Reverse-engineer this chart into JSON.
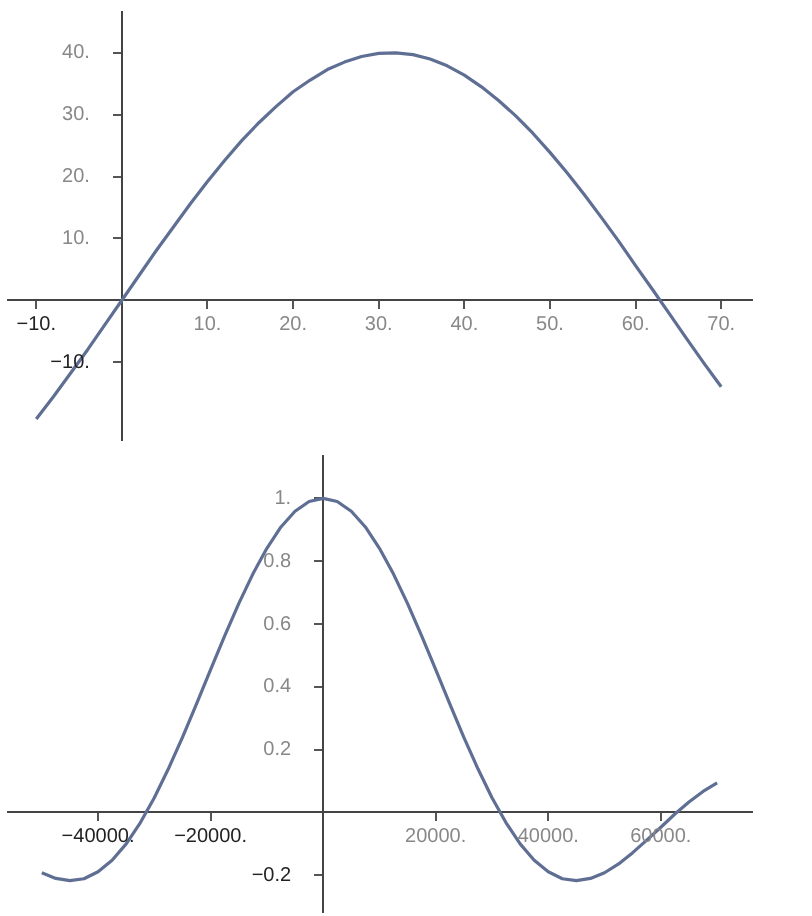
{
  "chart_data": [
    {
      "type": "line",
      "x": [
        -10,
        -8,
        -6,
        -4,
        -2,
        0,
        2,
        4,
        6,
        8,
        10,
        12,
        14,
        16,
        18,
        20,
        22,
        24,
        26,
        28,
        30,
        32,
        34,
        36,
        38,
        40,
        42,
        44,
        46,
        48,
        50,
        52,
        54,
        56,
        58,
        60,
        62,
        64,
        66,
        68,
        70
      ],
      "series": [
        {
          "color": "#5f6e93",
          "values": [
            -19.2,
            -15.6,
            -11.8,
            -8.0,
            -4.0,
            0,
            4.0,
            8.0,
            11.8,
            15.6,
            19.2,
            22.6,
            25.8,
            28.7,
            31.3,
            33.7,
            35.6,
            37.3,
            38.5,
            39.4,
            39.9,
            40.0,
            39.7,
            39.0,
            37.9,
            36.4,
            34.5,
            32.3,
            29.8,
            27.0,
            23.9,
            20.6,
            17.1,
            13.4,
            9.6,
            5.6,
            1.7,
            -2.3,
            -6.3,
            -10.2,
            -14.0
          ]
        }
      ],
      "xlim": [
        -13.3,
        73.6
      ],
      "ylim": [
        -22.6,
        46.6
      ],
      "xticks": [
        {
          "value": -10,
          "label": "−10."
        },
        {
          "value": 10,
          "label": "10."
        },
        {
          "value": 20,
          "label": "20."
        },
        {
          "value": 30,
          "label": "30."
        },
        {
          "value": 40,
          "label": "40."
        },
        {
          "value": 50,
          "label": "50."
        },
        {
          "value": 60,
          "label": "60."
        },
        {
          "value": 70,
          "label": "70."
        }
      ],
      "yticks": [
        {
          "value": -10,
          "label": "−10."
        },
        {
          "value": 10,
          "label": "10."
        },
        {
          "value": 20,
          "label": "20."
        },
        {
          "value": 30,
          "label": "30."
        },
        {
          "value": 40,
          "label": "40."
        }
      ],
      "grid": false,
      "marker": "none",
      "line_style": "solid"
    },
    {
      "type": "line",
      "x": [
        -50000,
        -47500,
        -45000,
        -42500,
        -40000,
        -37500,
        -35000,
        -32500,
        -30000,
        -27500,
        -25000,
        -22500,
        -20000,
        -17500,
        -15000,
        -12500,
        -10000,
        -7500,
        -5000,
        -2500,
        0,
        2500,
        5000,
        7500,
        10000,
        12500,
        15000,
        17500,
        20000,
        22500,
        25000,
        27500,
        30000,
        32500,
        35000,
        37500,
        40000,
        42500,
        45000,
        47500,
        50000,
        52500,
        55000,
        57500,
        60000,
        62500,
        65000,
        67500,
        70000
      ],
      "series": [
        {
          "color": "#5f6e93",
          "values": [
            -0.192,
            -0.21,
            -0.217,
            -0.211,
            -0.189,
            -0.152,
            -0.1,
            -0.033,
            0.047,
            0.139,
            0.239,
            0.346,
            0.455,
            0.562,
            0.665,
            0.759,
            0.841,
            0.909,
            0.959,
            0.99,
            1,
            0.99,
            0.959,
            0.909,
            0.841,
            0.759,
            0.665,
            0.562,
            0.455,
            0.346,
            0.239,
            0.139,
            0.047,
            -0.033,
            -0.1,
            -0.152,
            -0.189,
            -0.211,
            -0.217,
            -0.21,
            -0.192,
            -0.164,
            -0.128,
            -0.088,
            -0.047,
            -0.005,
            0.033,
            0.067,
            0.094
          ]
        }
      ],
      "xlim": [
        -56000,
        76200
      ],
      "ylim": [
        -0.317,
        1.135
      ],
      "xticks": [
        {
          "value": -40000,
          "label": "−40000."
        },
        {
          "value": -20000,
          "label": "−20000."
        },
        {
          "value": 20000,
          "label": "20000."
        },
        {
          "value": 40000,
          "label": "40000."
        },
        {
          "value": 60000,
          "label": "60000."
        }
      ],
      "yticks": [
        {
          "value": -0.2,
          "label": "−0.2"
        },
        0.2,
        0.4,
        0.6,
        0.8,
        {
          "value": 1,
          "label": "1."
        }
      ],
      "grid": false,
      "marker": "none",
      "line_style": "solid"
    }
  ]
}
